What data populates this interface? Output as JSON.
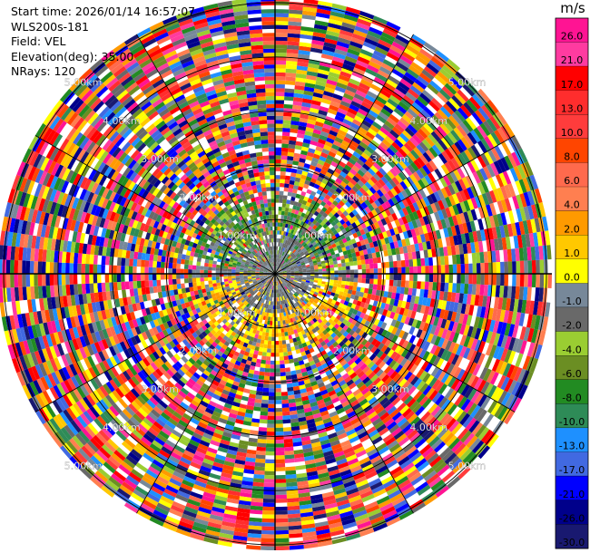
{
  "info": {
    "start_time": "Start time: 2026/01/14 16:57:07",
    "site": "WLS200s-181",
    "field": "Field: VEL",
    "elevation": "Elevation(deg): 35.00",
    "nrays": "NRays: 120"
  },
  "colorbar": {
    "unit": "m/s",
    "ticks": [
      "26.0",
      "21.0",
      "17.0",
      "13.0",
      "10.0",
      "8.0",
      "6.0",
      "4.0",
      "2.0",
      "1.0",
      "0.0",
      "-1.0",
      "-2.0",
      "-4.0",
      "-6.0",
      "-8.0",
      "-10.0",
      "-13.0",
      "-17.0",
      "-21.0",
      "-26.0",
      "-30.0"
    ],
    "colors": [
      "#ff1493",
      "#ff3ba0",
      "#ff0000",
      "#ff2d2d",
      "#ff3c3c",
      "#ff4500",
      "#ff6a4d",
      "#ff7f50",
      "#ff9a00",
      "#ffc800",
      "#ffff00",
      "#778899",
      "#696969",
      "#9acd32",
      "#6b8e23",
      "#228b22",
      "#2e8b57",
      "#1e90ff",
      "#4169e1",
      "#0000ff",
      "#00008b",
      "#191970"
    ]
  },
  "chart_data": {
    "type": "heatmap",
    "field": "VEL",
    "units": "m/s",
    "nrays": 120,
    "elevation_deg": 35.0,
    "range_rings": [
      "0.00km",
      "1.00km",
      "2.00km",
      "3.00km",
      "4.00km",
      "5.00km"
    ],
    "value_range": [
      -30,
      26
    ],
    "range_km_max": 5.1
  }
}
